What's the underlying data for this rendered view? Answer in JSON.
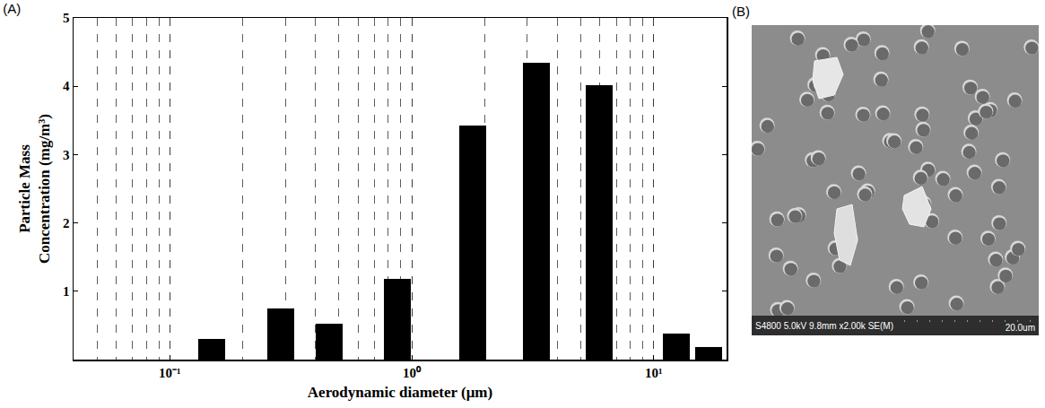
{
  "chart_data": {
    "type": "bar",
    "title": "(A)",
    "x_label": "Aerodynamic diameter (μm)",
    "y_label": "Particle Mass Concentration (mg/m³)",
    "x": [
      0.15,
      0.29,
      0.46,
      0.88,
      1.8,
      3.3,
      6.0,
      12.5,
      17
    ],
    "values": [
      0.3,
      0.75,
      0.52,
      1.18,
      3.42,
      4.35,
      4.02,
      0.38,
      0.18
    ],
    "color": "#000000",
    "log": "x",
    "grid": true,
    "xlim": [
      0.04,
      20
    ],
    "xticks": [
      {
        "value": 0.1,
        "label": "10⁻¹"
      },
      {
        "value": 1,
        "label": "10⁰"
      },
      {
        "value": 10,
        "label": "10¹"
      }
    ],
    "ylim": [
      0,
      5
    ],
    "yticks": [
      1,
      2,
      3,
      4,
      5
    ]
  },
  "image": {
    "label": "(B)",
    "caption": "S4800 5.0kV 9.8mm x2.00k SE(M)",
    "scale_bar": "20.0um"
  }
}
